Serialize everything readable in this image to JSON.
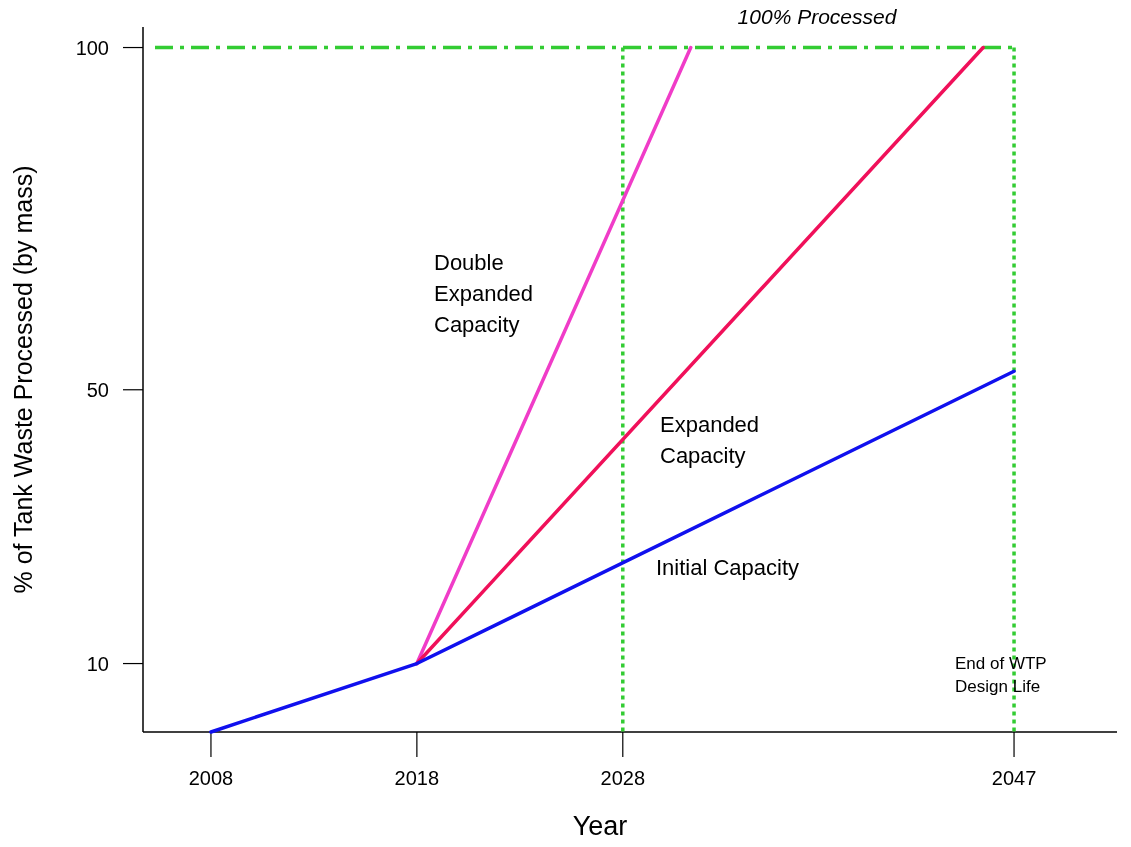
{
  "chart_data": {
    "type": "line",
    "xlabel": "Year",
    "ylabel": "% of Tank Waste Processed (by mass)",
    "xlim": [
      2004.7,
      2052
    ],
    "ylim": [
      0,
      103
    ],
    "xticks": [
      2008,
      2018,
      2028,
      2047
    ],
    "yticks": [
      10,
      50,
      100
    ],
    "grid": false,
    "legend": false,
    "marker": "none",
    "line_style": "solid",
    "series": [
      {
        "name": "Double Expanded Capacity",
        "color": "#f03cc8",
        "x": [
          2018,
          2031.3
        ],
        "values": [
          10,
          100
        ]
      },
      {
        "name": "Expanded Capacity",
        "color": "#f0105a",
        "x": [
          2018,
          2045.5
        ],
        "values": [
          10,
          100
        ]
      },
      {
        "name": "Initial Capacity",
        "color": "#1010ee",
        "x": [
          2008,
          2018,
          2047
        ],
        "values": [
          0,
          10,
          52.7
        ]
      }
    ],
    "ref_lines": [
      {
        "axis": "y",
        "value": 100,
        "label": "100% Processed",
        "color": "#33cc33",
        "line_style": "dashed"
      },
      {
        "axis": "x",
        "value": 2028,
        "label": null,
        "color": "#33cc33",
        "line_style": "dotted"
      },
      {
        "axis": "x",
        "value": 2047,
        "label": "End of WTP Design Life",
        "color": "#33cc33",
        "line_style": "dotted"
      }
    ]
  }
}
